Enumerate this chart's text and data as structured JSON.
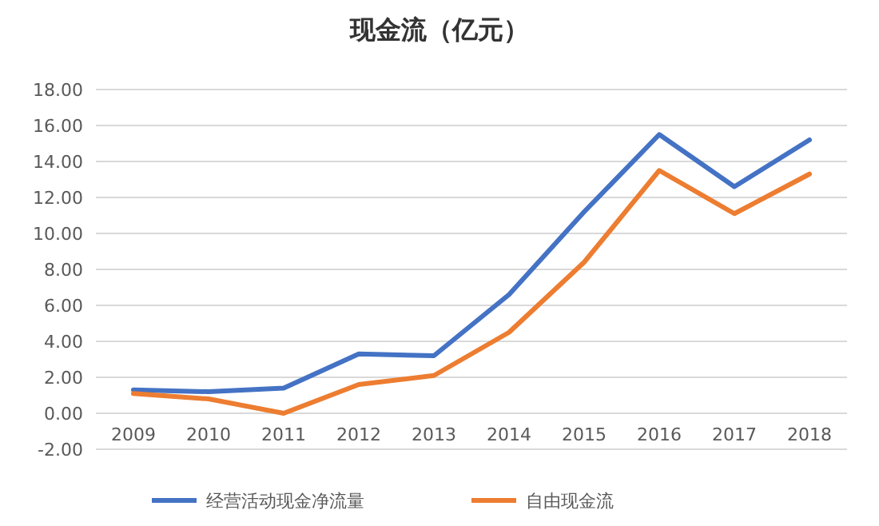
{
  "chart_data": {
    "type": "line",
    "title": "现金流（亿元）",
    "categories": [
      "2009",
      "2010",
      "2011",
      "2012",
      "2013",
      "2014",
      "2015",
      "2016",
      "2017",
      "2018"
    ],
    "series": [
      {
        "name": "经营活动现金净流量",
        "color": "#4472c4",
        "values": [
          1.3,
          1.2,
          1.4,
          3.3,
          3.2,
          6.6,
          11.2,
          15.5,
          12.6,
          15.2
        ]
      },
      {
        "name": "自由现金流",
        "color": "#ed7d31",
        "values": [
          1.1,
          0.8,
          0.0,
          1.6,
          2.1,
          4.5,
          8.4,
          13.5,
          11.1,
          13.3
        ]
      }
    ],
    "ylim": [
      -2,
      18
    ],
    "yticks": [
      {
        "value": -2,
        "label": "-2.00"
      },
      {
        "value": 0,
        "label": "0.00"
      },
      {
        "value": 2,
        "label": "2.00"
      },
      {
        "value": 4,
        "label": "4.00"
      },
      {
        "value": 6,
        "label": "6.00"
      },
      {
        "value": 8,
        "label": "8.00"
      },
      {
        "value": 10,
        "label": "10.00"
      },
      {
        "value": 12,
        "label": "12.00"
      },
      {
        "value": 14,
        "label": "14.00"
      },
      {
        "value": 16,
        "label": "16.00"
      },
      {
        "value": 18,
        "label": "18.00"
      }
    ],
    "grid": "y",
    "legend": "bottom",
    "marker": "none",
    "line_style": "solid"
  }
}
